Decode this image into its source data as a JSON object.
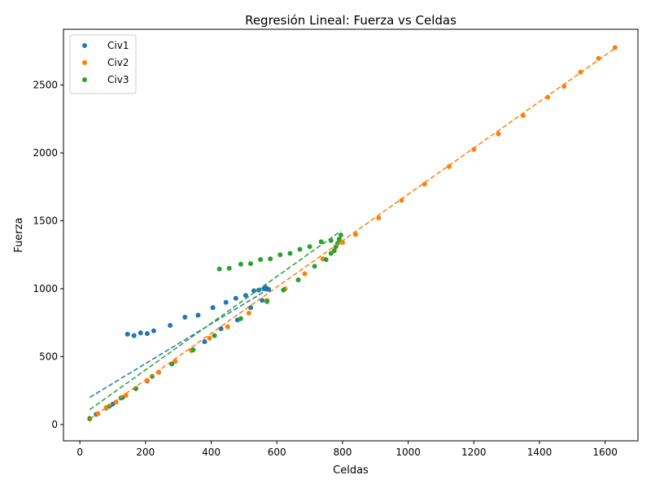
{
  "chart_data": {
    "type": "scatter",
    "title": "Regresión Lineal: Fuerza vs Celdas",
    "xlabel": "Celdas",
    "ylabel": "Fuerza",
    "xlim": [
      -50,
      1700
    ],
    "ylim": [
      -120,
      2910
    ],
    "xticks": [
      0,
      200,
      400,
      600,
      800,
      1000,
      1200,
      1400,
      1600
    ],
    "yticks": [
      0,
      500,
      1000,
      1500,
      2000,
      2500
    ],
    "grid": false,
    "legend_position": "top-left",
    "series": [
      {
        "name": "Civ1",
        "color": "#1f77b4",
        "points": [
          [
            50,
            75
          ],
          [
            80,
            120
          ],
          [
            100,
            150
          ],
          [
            130,
            200
          ],
          [
            170,
            265
          ],
          [
            205,
            320
          ],
          [
            240,
            385
          ],
          [
            290,
            465
          ],
          [
            340,
            545
          ],
          [
            380,
            610
          ],
          [
            430,
            705
          ],
          [
            480,
            770
          ],
          [
            520,
            860
          ],
          [
            555,
            915
          ],
          [
            575,
            995
          ],
          [
            570,
            1000
          ],
          [
            565,
            1010
          ],
          [
            560,
            1000
          ],
          [
            545,
            990
          ],
          [
            530,
            985
          ],
          [
            505,
            950
          ],
          [
            475,
            930
          ],
          [
            445,
            900
          ],
          [
            405,
            860
          ],
          [
            360,
            805
          ],
          [
            320,
            790
          ],
          [
            275,
            730
          ],
          [
            225,
            690
          ],
          [
            205,
            670
          ],
          [
            185,
            675
          ],
          [
            165,
            655
          ],
          [
            145,
            665
          ]
        ],
        "fit": {
          "x": [
            30,
            580
          ],
          "y": [
            200,
            1005
          ]
        }
      },
      {
        "name": "Civ2",
        "color": "#ff7f0e",
        "points": [
          [
            30,
            40
          ],
          [
            55,
            80
          ],
          [
            80,
            125
          ],
          [
            110,
            165
          ],
          [
            140,
            215
          ],
          [
            170,
            265
          ],
          [
            205,
            325
          ],
          [
            240,
            385
          ],
          [
            290,
            465
          ],
          [
            340,
            545
          ],
          [
            395,
            635
          ],
          [
            450,
            720
          ],
          [
            515,
            820
          ],
          [
            570,
            915
          ],
          [
            625,
            1000
          ],
          [
            685,
            1110
          ],
          [
            740,
            1220
          ],
          [
            800,
            1340
          ],
          [
            840,
            1400
          ],
          [
            910,
            1520
          ],
          [
            980,
            1650
          ],
          [
            1050,
            1770
          ],
          [
            1125,
            1900
          ],
          [
            1200,
            2025
          ],
          [
            1275,
            2140
          ],
          [
            1350,
            2275
          ],
          [
            1425,
            2410
          ],
          [
            1475,
            2490
          ],
          [
            1525,
            2595
          ],
          [
            1580,
            2695
          ],
          [
            1630,
            2775
          ]
        ],
        "fit": {
          "x": [
            30,
            1630
          ],
          "y": [
            40,
            2770
          ]
        }
      },
      {
        "name": "Civ3",
        "color": "#2ca02c",
        "points": [
          [
            30,
            45
          ],
          [
            90,
            135
          ],
          [
            125,
            195
          ],
          [
            170,
            265
          ],
          [
            220,
            355
          ],
          [
            280,
            445
          ],
          [
            345,
            550
          ],
          [
            410,
            655
          ],
          [
            490,
            780
          ],
          [
            570,
            905
          ],
          [
            620,
            990
          ],
          [
            665,
            1065
          ],
          [
            715,
            1165
          ],
          [
            750,
            1215
          ],
          [
            765,
            1260
          ],
          [
            775,
            1280
          ],
          [
            780,
            1310
          ],
          [
            785,
            1335
          ],
          [
            790,
            1365
          ],
          [
            795,
            1395
          ],
          [
            765,
            1355
          ],
          [
            735,
            1345
          ],
          [
            700,
            1310
          ],
          [
            670,
            1290
          ],
          [
            640,
            1260
          ],
          [
            610,
            1250
          ],
          [
            580,
            1220
          ],
          [
            550,
            1215
          ],
          [
            520,
            1185
          ],
          [
            490,
            1180
          ],
          [
            455,
            1150
          ],
          [
            425,
            1145
          ]
        ],
        "fit": {
          "x": [
            30,
            795
          ],
          "y": [
            110,
            1425
          ]
        }
      }
    ]
  }
}
